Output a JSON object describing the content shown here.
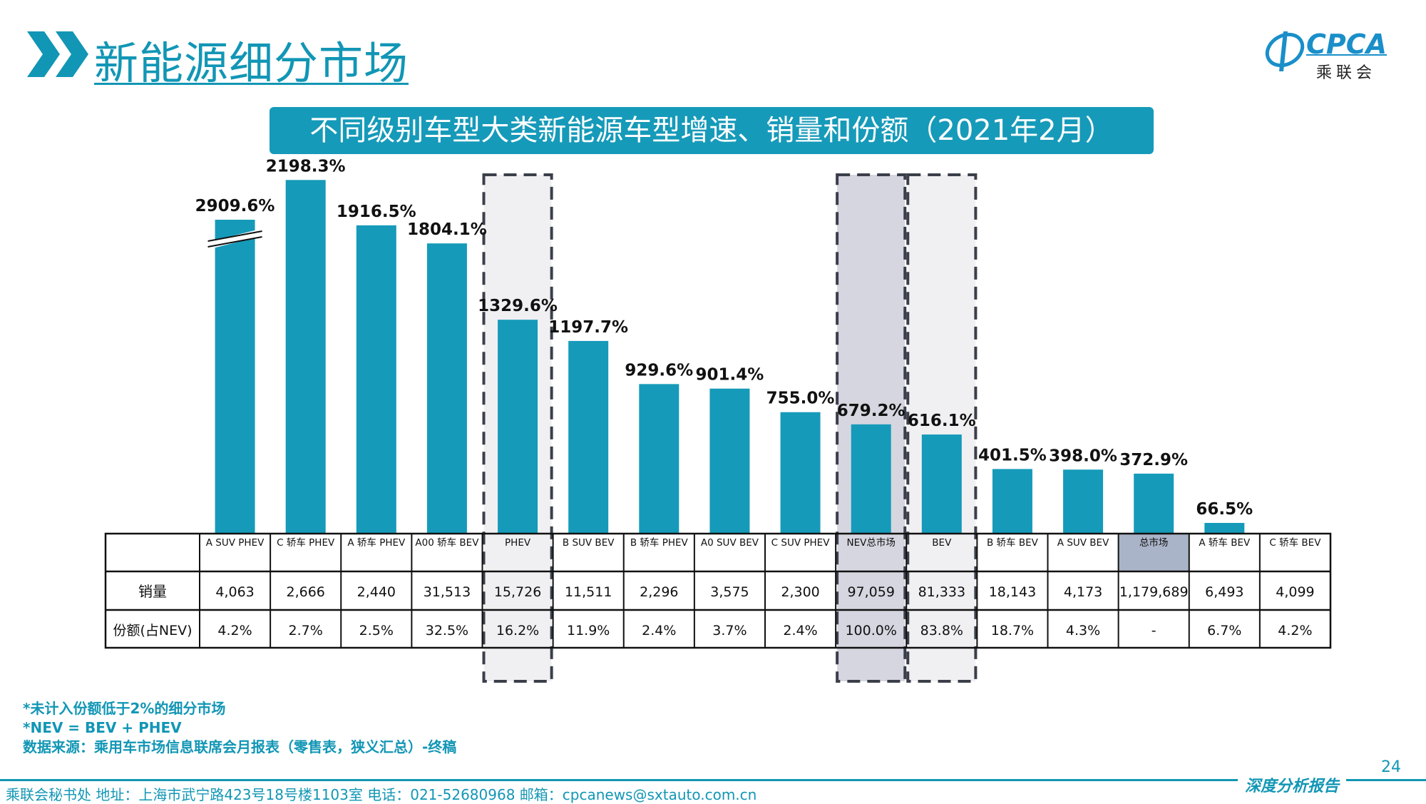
{
  "header": {
    "title": "新能源细分市场",
    "logo_main": "CPCA",
    "logo_sub": "乘联会"
  },
  "chart_title": "不同级别车型大类新能源车型增速、销量和份额（2021年2月）",
  "colors": {
    "bar": "#169ab9",
    "accent": "#1296b5",
    "highlight_gray": "#d6d6e0",
    "highlight_light": "#f0f0f2",
    "dashed_border": "#3a3f4a"
  },
  "chart_data": {
    "type": "bar",
    "title": "不同级别车型大类新能源车型增速、销量和份额（2021年2月）",
    "categories": [
      "A SUV PHEV",
      "C 轿车 PHEV",
      "A 轿车 PHEV",
      "A00 轿车 BEV",
      "PHEV",
      "B SUV BEV",
      "B 轿车 PHEV",
      "A0 SUV BEV",
      "C SUV PHEV",
      "NEV总市场",
      "BEV",
      "B 轿车 BEV",
      "A SUV BEV",
      "总市场",
      "A 轿车 BEV",
      "C 轿车 BEV"
    ],
    "series": [
      {
        "values": [
          2909.6,
          2198.3,
          1916.5,
          1804.1,
          1329.6,
          1197.7,
          929.6,
          901.4,
          755.0,
          679.2,
          616.1,
          401.5,
          398.0,
          372.9,
          66.5,
          null
        ],
        "value_labels": [
          "2909.6%",
          "2198.3%",
          "1916.5%",
          "1804.1%",
          "1329.6%",
          "1197.7%",
          "929.6%",
          "901.4%",
          "755.0%",
          "679.2%",
          "616.1%",
          "401.5%",
          "398.0%",
          "372.9%",
          "66.5%",
          ""
        ]
      }
    ],
    "axis_break_on_first_bar": true,
    "highlighted_columns": [
      "PHEV",
      "NEV总市场",
      "BEV"
    ],
    "highlighted_cells": [
      "总市场"
    ]
  },
  "table": {
    "row_labels": [
      "销量",
      "份额(占NEV)"
    ],
    "sales": [
      "4,063",
      "2,666",
      "2,440",
      "31,513",
      "15,726",
      "11,511",
      "2,296",
      "3,575",
      "2,300",
      "97,059",
      "81,333",
      "18,143",
      "4,173",
      "1,179,689",
      "6,493",
      "4,099"
    ],
    "shares": [
      "4.2%",
      "2.7%",
      "2.5%",
      "32.5%",
      "16.2%",
      "11.9%",
      "2.4%",
      "3.7%",
      "2.4%",
      "100.0%",
      "83.8%",
      "18.7%",
      "4.3%",
      "-",
      "6.7%",
      "4.2%"
    ]
  },
  "footnotes": [
    "*未计入份额低于2%的细分市场",
    "*NEV = BEV + PHEV",
    "数据来源：乘用车市场信息联席会月报表（零售表，狭义汇总）-终稿"
  ],
  "page_number": "24",
  "footer": {
    "contact": "乘联会秘书处   地址：上海市武宁路423号18号楼1103室  电话：021-52680968   邮箱：cpcanews@sxtauto.com.cn",
    "brand": "深度分析报告"
  }
}
